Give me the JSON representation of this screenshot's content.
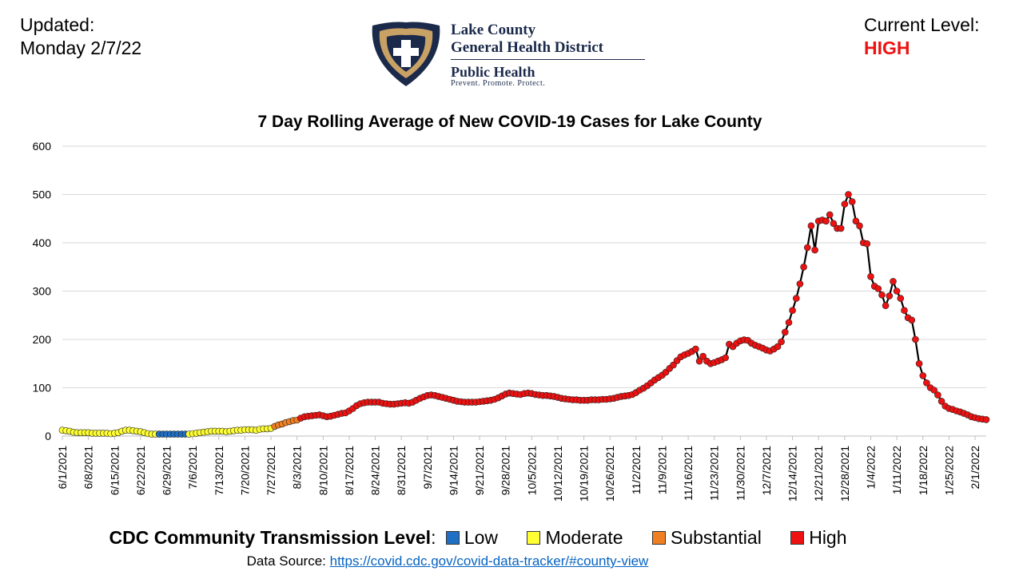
{
  "header": {
    "updated_label": "Updated:",
    "updated_date": "Monday 2/7/22",
    "level_label": "Current Level:",
    "level_value": "HIGH",
    "level_color": "#ee1111"
  },
  "logo": {
    "line1": "Lake County",
    "line2": "General Health District",
    "line3": "Public Health",
    "tagline": "Prevent. Promote. Protect.",
    "shield_color": "#1b2a4a",
    "shield_fill": "#c8a165"
  },
  "legend": {
    "lead": "CDC Community Transmission Level",
    "colon": ":",
    "items": [
      {
        "label": "Low",
        "color": "#1f6fc5"
      },
      {
        "label": "Moderate",
        "color": "#ffff33"
      },
      {
        "label": "Substantial",
        "color": "#f07f22"
      },
      {
        "label": "High",
        "color": "#ee1111"
      }
    ]
  },
  "source": {
    "label": "Data Source: ",
    "link": "https://covid.cdc.gov/covid-data-tracker/#county-view"
  },
  "chart_data": {
    "type": "line",
    "title": "7 Day Rolling Average of New COVID-19 Cases for Lake County",
    "xlabel": "",
    "ylabel": "",
    "ylim": [
      0,
      600
    ],
    "yticks": [
      "0",
      "100",
      "200",
      "300",
      "400",
      "500",
      "600"
    ],
    "start_date": "6/1/2021",
    "x_tick_labels": [
      "6/1/2021",
      "6/8/2021",
      "6/15/2021",
      "6/22/2021",
      "6/29/2021",
      "7/6/2021",
      "7/13/2021",
      "7/20/2021",
      "7/27/2021",
      "8/3/2021",
      "8/10/2021",
      "8/17/2021",
      "8/24/2021",
      "8/31/2021",
      "9/7/2021",
      "9/14/2021",
      "9/21/2021",
      "9/28/2021",
      "10/5/2021",
      "10/12/2021",
      "10/19/2021",
      "10/26/2021",
      "11/2/2021",
      "11/9/2021",
      "11/16/2021",
      "11/23/2021",
      "11/30/2021",
      "12/7/2021",
      "12/14/2021",
      "12/21/2021",
      "12/28/2021",
      "1/4/2022",
      "1/11/2022",
      "1/18/2022",
      "1/25/2022",
      "2/1/2022"
    ],
    "grid": true,
    "series": [
      {
        "values": [
          12,
          11,
          10,
          8,
          7,
          7,
          7,
          7,
          6,
          6,
          6,
          6,
          6,
          5,
          6,
          7,
          10,
          12,
          12,
          11,
          10,
          9,
          7,
          5,
          4,
          4,
          4,
          4,
          4,
          4,
          4,
          4,
          4,
          4,
          4,
          5,
          6,
          7,
          8,
          9,
          10,
          10,
          10,
          10,
          9,
          10,
          11,
          12,
          12,
          13,
          13,
          13,
          12,
          14,
          15,
          15,
          16,
          20,
          23,
          25,
          28,
          30,
          32,
          33,
          37,
          40,
          41,
          42,
          43,
          44,
          42,
          40,
          41,
          43,
          45,
          47,
          48,
          52,
          57,
          63,
          67,
          69,
          70,
          70,
          70,
          70,
          68,
          67,
          66,
          66,
          67,
          68,
          69,
          68,
          70,
          74,
          78,
          81,
          84,
          85,
          84,
          82,
          80,
          78,
          76,
          74,
          72,
          71,
          70,
          70,
          70,
          70,
          71,
          72,
          73,
          74,
          76,
          79,
          83,
          87,
          89,
          88,
          87,
          86,
          88,
          89,
          88,
          86,
          85,
          84,
          84,
          83,
          82,
          80,
          78,
          77,
          76,
          75,
          75,
          74,
          74,
          74,
          75,
          75,
          75,
          76,
          76,
          77,
          78,
          80,
          82,
          83,
          84,
          86,
          90,
          95,
          99,
          104,
          110,
          116,
          121,
          126,
          132,
          140,
          147,
          156,
          164,
          168,
          171,
          175,
          180,
          155,
          165,
          155,
          150,
          152,
          155,
          158,
          162,
          190,
          185,
          192,
          197,
          199,
          198,
          192,
          188,
          185,
          182,
          178,
          176,
          180,
          185,
          195,
          215,
          235,
          260,
          285,
          315,
          350,
          390,
          435,
          385,
          445,
          447,
          445,
          458,
          440,
          430,
          430,
          480,
          500,
          485,
          445,
          435,
          400,
          398,
          330,
          310,
          305,
          292,
          270,
          290,
          320,
          300,
          285,
          260,
          245,
          240,
          200,
          150,
          125,
          110,
          100,
          95,
          85,
          72,
          62,
          57,
          55,
          52,
          50,
          47,
          44,
          40,
          38,
          36,
          35,
          34
        ],
        "levels": [
          "Moderate",
          "Moderate",
          "Moderate",
          "Moderate",
          "Moderate",
          "Moderate",
          "Moderate",
          "Moderate",
          "Moderate",
          "Moderate",
          "Moderate",
          "Moderate",
          "Moderate",
          "Moderate",
          "Moderate",
          "Moderate",
          "Moderate",
          "Moderate",
          "Moderate",
          "Moderate",
          "Moderate",
          "Moderate",
          "Moderate",
          "Moderate",
          "Moderate",
          "Moderate",
          "Low",
          "Low",
          "Low",
          "Low",
          "Low",
          "Low",
          "Low",
          "Low",
          "Moderate",
          "Moderate",
          "Moderate",
          "Moderate",
          "Moderate",
          "Moderate",
          "Moderate",
          "Moderate",
          "Moderate",
          "Moderate",
          "Moderate",
          "Moderate",
          "Moderate",
          "Moderate",
          "Moderate",
          "Moderate",
          "Moderate",
          "Moderate",
          "Moderate",
          "Moderate",
          "Moderate",
          "Moderate",
          "Moderate",
          "Substantial",
          "Substantial",
          "Substantial",
          "Substantial",
          "Substantial",
          "Substantial",
          "Substantial",
          "High",
          "High",
          "High",
          "High",
          "High",
          "High",
          "High",
          "High",
          "High",
          "High",
          "High",
          "High",
          "High",
          "High",
          "High",
          "High",
          "High",
          "High",
          "High",
          "High",
          "High",
          "High",
          "High",
          "High",
          "High",
          "High",
          "High",
          "High",
          "High",
          "High",
          "High",
          "High",
          "High",
          "High",
          "High",
          "High",
          "High",
          "High",
          "High",
          "High",
          "High",
          "High",
          "High",
          "High",
          "High",
          "High",
          "High",
          "High",
          "High",
          "High",
          "High",
          "High",
          "High",
          "High",
          "High",
          "High",
          "High",
          "High",
          "High",
          "High",
          "High",
          "High",
          "High",
          "High",
          "High",
          "High",
          "High",
          "High",
          "High",
          "High",
          "High",
          "High",
          "High",
          "High",
          "High",
          "High",
          "High",
          "High",
          "High",
          "High",
          "High",
          "High",
          "High",
          "High",
          "High",
          "High",
          "High",
          "High",
          "High",
          "High",
          "High",
          "High",
          "High",
          "High",
          "High",
          "High",
          "High",
          "High",
          "High",
          "High",
          "High",
          "High",
          "High",
          "High",
          "High",
          "High",
          "High",
          "High",
          "High",
          "High",
          "High",
          "High",
          "High",
          "High",
          "High",
          "High",
          "High",
          "High",
          "High",
          "High",
          "High",
          "High",
          "High",
          "High",
          "High",
          "High",
          "High",
          "High",
          "High",
          "High",
          "High",
          "High",
          "High",
          "High",
          "High",
          "High",
          "High",
          "High",
          "High",
          "High",
          "High",
          "High",
          "High",
          "High",
          "High",
          "High",
          "High",
          "High",
          "High",
          "High",
          "High",
          "High",
          "High",
          "High",
          "High",
          "High",
          "High",
          "High",
          "High",
          "High",
          "High",
          "High",
          "High",
          "High",
          "High",
          "High",
          "High",
          "High",
          "High",
          "High",
          "High",
          "High",
          "High",
          "High",
          "High",
          "High",
          "High",
          "High",
          "High",
          "High",
          "High",
          "High",
          "High",
          "High",
          "High",
          "High",
          "High",
          "High",
          "High",
          "High",
          "High",
          "High",
          "High",
          "High",
          "High",
          "High",
          "High",
          "High",
          "High",
          "High"
        ]
      }
    ]
  }
}
